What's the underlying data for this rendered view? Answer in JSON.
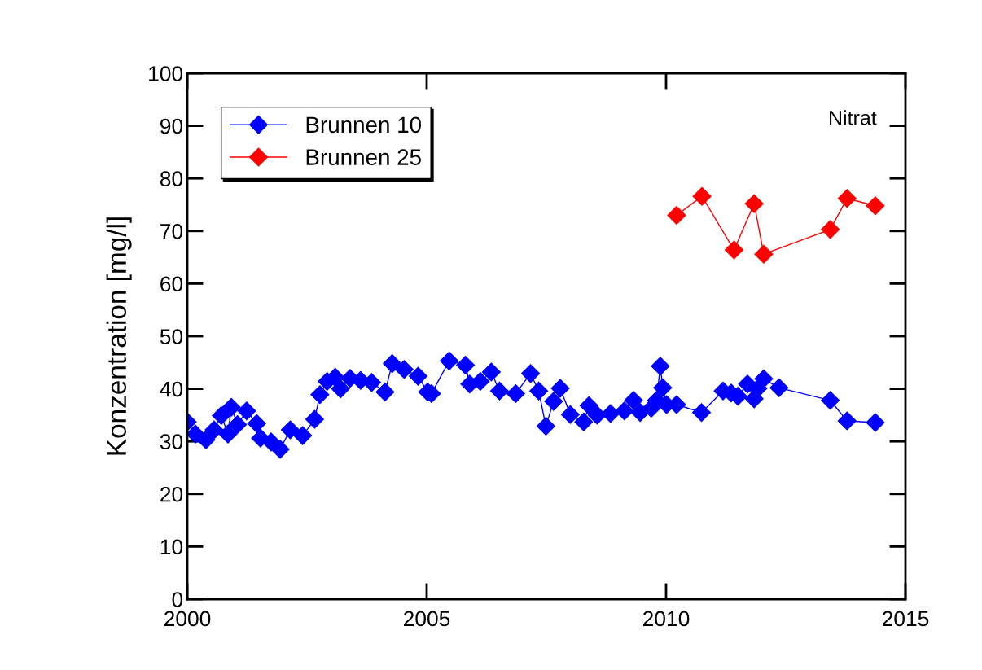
{
  "chart_data": {
    "type": "line",
    "ylabel": "Konzentration [mg/l]",
    "annotations": [
      "Nitrat"
    ],
    "xlim": [
      2000,
      2015
    ],
    "xticks": [
      2000,
      2005,
      2010,
      2015
    ],
    "ylim": [
      0,
      100
    ],
    "yticks": [
      0,
      10,
      20,
      30,
      40,
      50,
      60,
      70,
      80,
      90,
      100
    ],
    "grid": false,
    "legend": "top left",
    "marker": "diamond",
    "line_style": "solid",
    "series": [
      {
        "name": "Brunnen 10",
        "color": "#0000ff",
        "x": [
          2000.0,
          2000.17,
          2000.39,
          2000.56,
          2000.71,
          2000.85,
          2000.92,
          2001.05,
          2001.24,
          2001.45,
          2001.53,
          2001.75,
          2001.94,
          2002.15,
          2002.41,
          2002.66,
          2002.77,
          2002.92,
          2003.09,
          2003.2,
          2003.4,
          2003.62,
          2003.85,
          2004.13,
          2004.28,
          2004.53,
          2004.82,
          2005.02,
          2005.1,
          2005.47,
          2005.81,
          2005.9,
          2006.12,
          2006.35,
          2006.52,
          2006.86,
          2007.17,
          2007.34,
          2007.49,
          2007.65,
          2007.79,
          2008.0,
          2008.28,
          2008.39,
          2008.56,
          2008.84,
          2009.13,
          2009.32,
          2009.46,
          2009.69,
          2009.8,
          2009.88,
          2009.93,
          2010.01,
          2010.22,
          2010.74,
          2011.19,
          2011.36,
          2011.5,
          2011.7,
          2011.84,
          2011.92,
          2012.04,
          2012.36,
          2013.43,
          2013.78,
          2014.37
        ],
        "values": [
          33.7,
          31.4,
          30.3,
          32.2,
          34.9,
          31.4,
          36.5,
          33.2,
          35.8,
          33.4,
          30.6,
          29.9,
          28.5,
          32.2,
          31.1,
          34.2,
          38.9,
          41.4,
          42.2,
          40.0,
          42.0,
          41.6,
          41.2,
          39.4,
          44.8,
          43.7,
          42.4,
          39.4,
          39.1,
          45.3,
          44.5,
          40.9,
          41.4,
          43.2,
          39.6,
          39.1,
          42.9,
          39.6,
          32.9,
          37.6,
          40.1,
          35.1,
          33.7,
          36.8,
          35.0,
          35.3,
          35.8,
          37.8,
          35.5,
          36.3,
          37.8,
          44.3,
          40.2,
          37.0,
          37.0,
          35.5,
          39.6,
          39.2,
          38.6,
          40.9,
          38.1,
          40.1,
          41.9,
          40.2,
          37.8,
          33.9,
          33.6
        ]
      },
      {
        "name": "Brunnen 25",
        "color": "#ff0000",
        "x": [
          2010.22,
          2010.75,
          2011.42,
          2011.84,
          2012.04,
          2013.43,
          2013.78,
          2014.37
        ],
        "values": [
          73.0,
          76.6,
          66.4,
          75.2,
          65.6,
          70.3,
          76.2,
          74.8
        ]
      }
    ]
  }
}
